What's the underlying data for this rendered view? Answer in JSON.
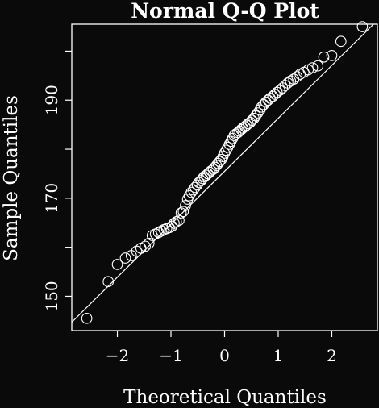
{
  "chart_data": {
    "type": "scatter",
    "title": "Normal Q-Q Plot",
    "xlabel": "Theoretical Quantiles",
    "ylabel": "Sample Quantiles",
    "xlim": [
      -2.85,
      2.85
    ],
    "ylim": [
      143,
      205.5
    ],
    "x_ticks": [
      -2,
      -1,
      0,
      1,
      2
    ],
    "y_ticks": [
      150,
      170,
      190
    ],
    "y_minor_ticks": [
      160,
      180,
      200
    ],
    "reference_line": {
      "slope": 10.8,
      "intercept": 175.5
    },
    "colors": {
      "background": "#0a0a0a",
      "foreground": "#ffffff"
    },
    "points": [
      [
        -2.57,
        145.5
      ],
      [
        -2.17,
        153.0
      ],
      [
        -2.0,
        156.5
      ],
      [
        -1.85,
        157.8
      ],
      [
        -1.74,
        158.3
      ],
      [
        -1.64,
        159.2
      ],
      [
        -1.56,
        159.8
      ],
      [
        -1.48,
        160.2
      ],
      [
        -1.41,
        160.8
      ],
      [
        -1.35,
        162.4
      ],
      [
        -1.29,
        162.7
      ],
      [
        -1.23,
        163.0
      ],
      [
        -1.18,
        163.3
      ],
      [
        -1.13,
        163.6
      ],
      [
        -1.08,
        163.8
      ],
      [
        -1.03,
        164.0
      ],
      [
        -0.98,
        164.3
      ],
      [
        -0.94,
        164.9
      ],
      [
        -0.9,
        165.2
      ],
      [
        -0.85,
        165.5
      ],
      [
        -0.81,
        167.0
      ],
      [
        -0.77,
        167.3
      ],
      [
        -0.73,
        168.5
      ],
      [
        -0.69,
        169.8
      ],
      [
        -0.66,
        170.5
      ],
      [
        -0.62,
        171.2
      ],
      [
        -0.58,
        171.7
      ],
      [
        -0.55,
        172.2
      ],
      [
        -0.51,
        172.7
      ],
      [
        -0.48,
        173.2
      ],
      [
        -0.44,
        173.6
      ],
      [
        -0.41,
        174.0
      ],
      [
        -0.38,
        174.4
      ],
      [
        -0.34,
        174.7
      ],
      [
        -0.31,
        175.0
      ],
      [
        -0.28,
        175.3
      ],
      [
        -0.25,
        175.6
      ],
      [
        -0.21,
        175.9
      ],
      [
        -0.18,
        176.3
      ],
      [
        -0.15,
        176.7
      ],
      [
        -0.12,
        177.1
      ],
      [
        -0.09,
        177.5
      ],
      [
        -0.06,
        177.9
      ],
      [
        -0.03,
        178.5
      ],
      [
        0.0,
        179.2
      ],
      [
        0.03,
        179.8
      ],
      [
        0.06,
        180.4
      ],
      [
        0.09,
        181.0
      ],
      [
        0.12,
        181.6
      ],
      [
        0.15,
        182.2
      ],
      [
        0.18,
        182.8
      ],
      [
        0.21,
        183.1
      ],
      [
        0.25,
        183.4
      ],
      [
        0.28,
        183.7
      ],
      [
        0.31,
        184.0
      ],
      [
        0.34,
        184.3
      ],
      [
        0.38,
        184.6
      ],
      [
        0.41,
        184.9
      ],
      [
        0.44,
        185.2
      ],
      [
        0.48,
        185.5
      ],
      [
        0.51,
        185.9
      ],
      [
        0.55,
        186.3
      ],
      [
        0.58,
        186.8
      ],
      [
        0.62,
        187.4
      ],
      [
        0.66,
        188.0
      ],
      [
        0.69,
        188.6
      ],
      [
        0.73,
        189.1
      ],
      [
        0.77,
        189.6
      ],
      [
        0.81,
        190.0
      ],
      [
        0.85,
        190.4
      ],
      [
        0.9,
        190.8
      ],
      [
        0.94,
        191.2
      ],
      [
        0.98,
        191.6
      ],
      [
        1.03,
        192.0
      ],
      [
        1.08,
        192.5
      ],
      [
        1.13,
        193.0
      ],
      [
        1.18,
        193.5
      ],
      [
        1.23,
        193.9
      ],
      [
        1.29,
        194.3
      ],
      [
        1.35,
        194.8
      ],
      [
        1.41,
        195.3
      ],
      [
        1.48,
        195.7
      ],
      [
        1.56,
        196.2
      ],
      [
        1.64,
        196.6
      ],
      [
        1.74,
        197.0
      ],
      [
        1.85,
        198.8
      ],
      [
        2.0,
        199.1
      ],
      [
        2.17,
        202.0
      ],
      [
        2.57,
        205.0
      ]
    ]
  }
}
